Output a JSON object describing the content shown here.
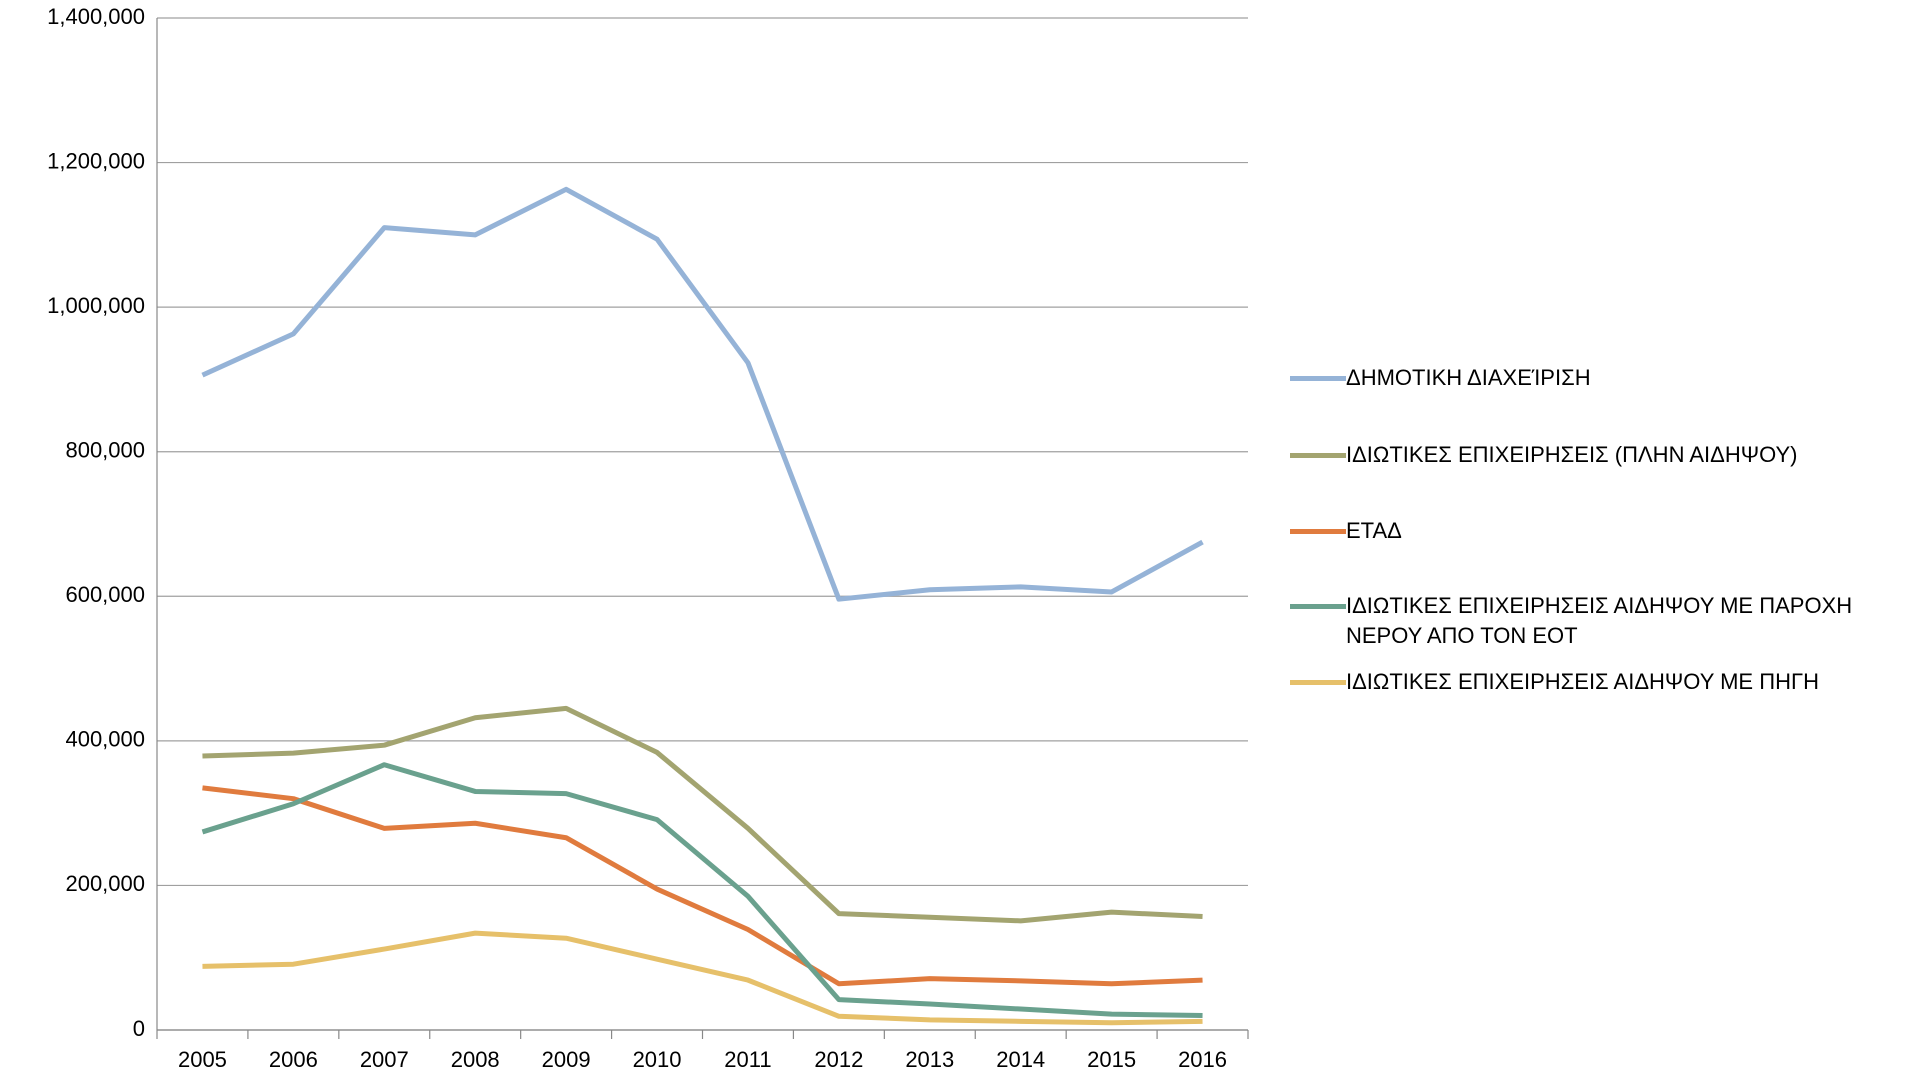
{
  "chart_data": {
    "type": "line",
    "categories": [
      "2005",
      "2006",
      "2007",
      "2008",
      "2009",
      "2010",
      "2011",
      "2012",
      "2013",
      "2014",
      "2015",
      "2016"
    ],
    "series": [
      {
        "name": "ΔΗΜΟΤΙΚΗ ΔΙΑΧΕΊΡΙΣΗ",
        "color": "#95b3d7",
        "values": [
          906000,
          963000,
          1110000,
          1100000,
          1163000,
          1094000,
          923000,
          596000,
          609000,
          613000,
          606000,
          675000
        ]
      },
      {
        "name": "ΙΔΙΩΤΙΚΕΣ ΕΠΙΧΕΙΡΗΣΕΙΣ (ΠΛΗΝ ΑΙΔΗΨΟΥ)",
        "color": "#a3a470",
        "values": [
          379000,
          383000,
          394000,
          432000,
          445000,
          384000,
          279000,
          161000,
          156000,
          151000,
          163000,
          157000
        ]
      },
      {
        "name": "ΕΤΑΔ",
        "color": "#e07b3e",
        "values": [
          335000,
          320000,
          279000,
          286000,
          266000,
          195000,
          139000,
          64000,
          71000,
          68000,
          64000,
          69000
        ]
      },
      {
        "name": "ΙΔΙΩΤΙΚΕΣ ΕΠΙΧΕΙΡΗΣΕΙΣ ΑΙΔΗΨΟΥ ΜΕ ΠΑΡΟΧΗ ΝΕΡΟΥ ΑΠΟ ΤΟΝ ΕΟΤ",
        "color": "#6aa18e",
        "values": [
          274000,
          313000,
          367000,
          330000,
          327000,
          291000,
          185000,
          42000,
          36000,
          29000,
          22000,
          20000
        ]
      },
      {
        "name": "ΙΔΙΩΤΙΚΕΣ ΕΠΙΧΕΙΡΗΣΕΙΣ ΑΙΔΗΨΟΥ ΜΕ ΠΗΓΗ",
        "color": "#e6c06a",
        "values": [
          88000,
          91000,
          112000,
          134000,
          127000,
          98000,
          69000,
          19000,
          14000,
          12000,
          10000,
          12000
        ]
      }
    ],
    "ylim": [
      0,
      1400000
    ],
    "yticks": [
      0,
      {
        "value": 200000,
        "label": "200,000"
      },
      {
        "value": 400000,
        "label": "400,000"
      },
      {
        "value": 600000,
        "label": "600,000"
      },
      {
        "value": 800000,
        "label": "800,000"
      },
      {
        "value": 1000000,
        "label": "1,000,000"
      },
      {
        "value": 1200000,
        "label": "1,200,000"
      },
      {
        "value": 1400000,
        "label": "1,400,000"
      }
    ],
    "grid": true,
    "legend": "right"
  }
}
